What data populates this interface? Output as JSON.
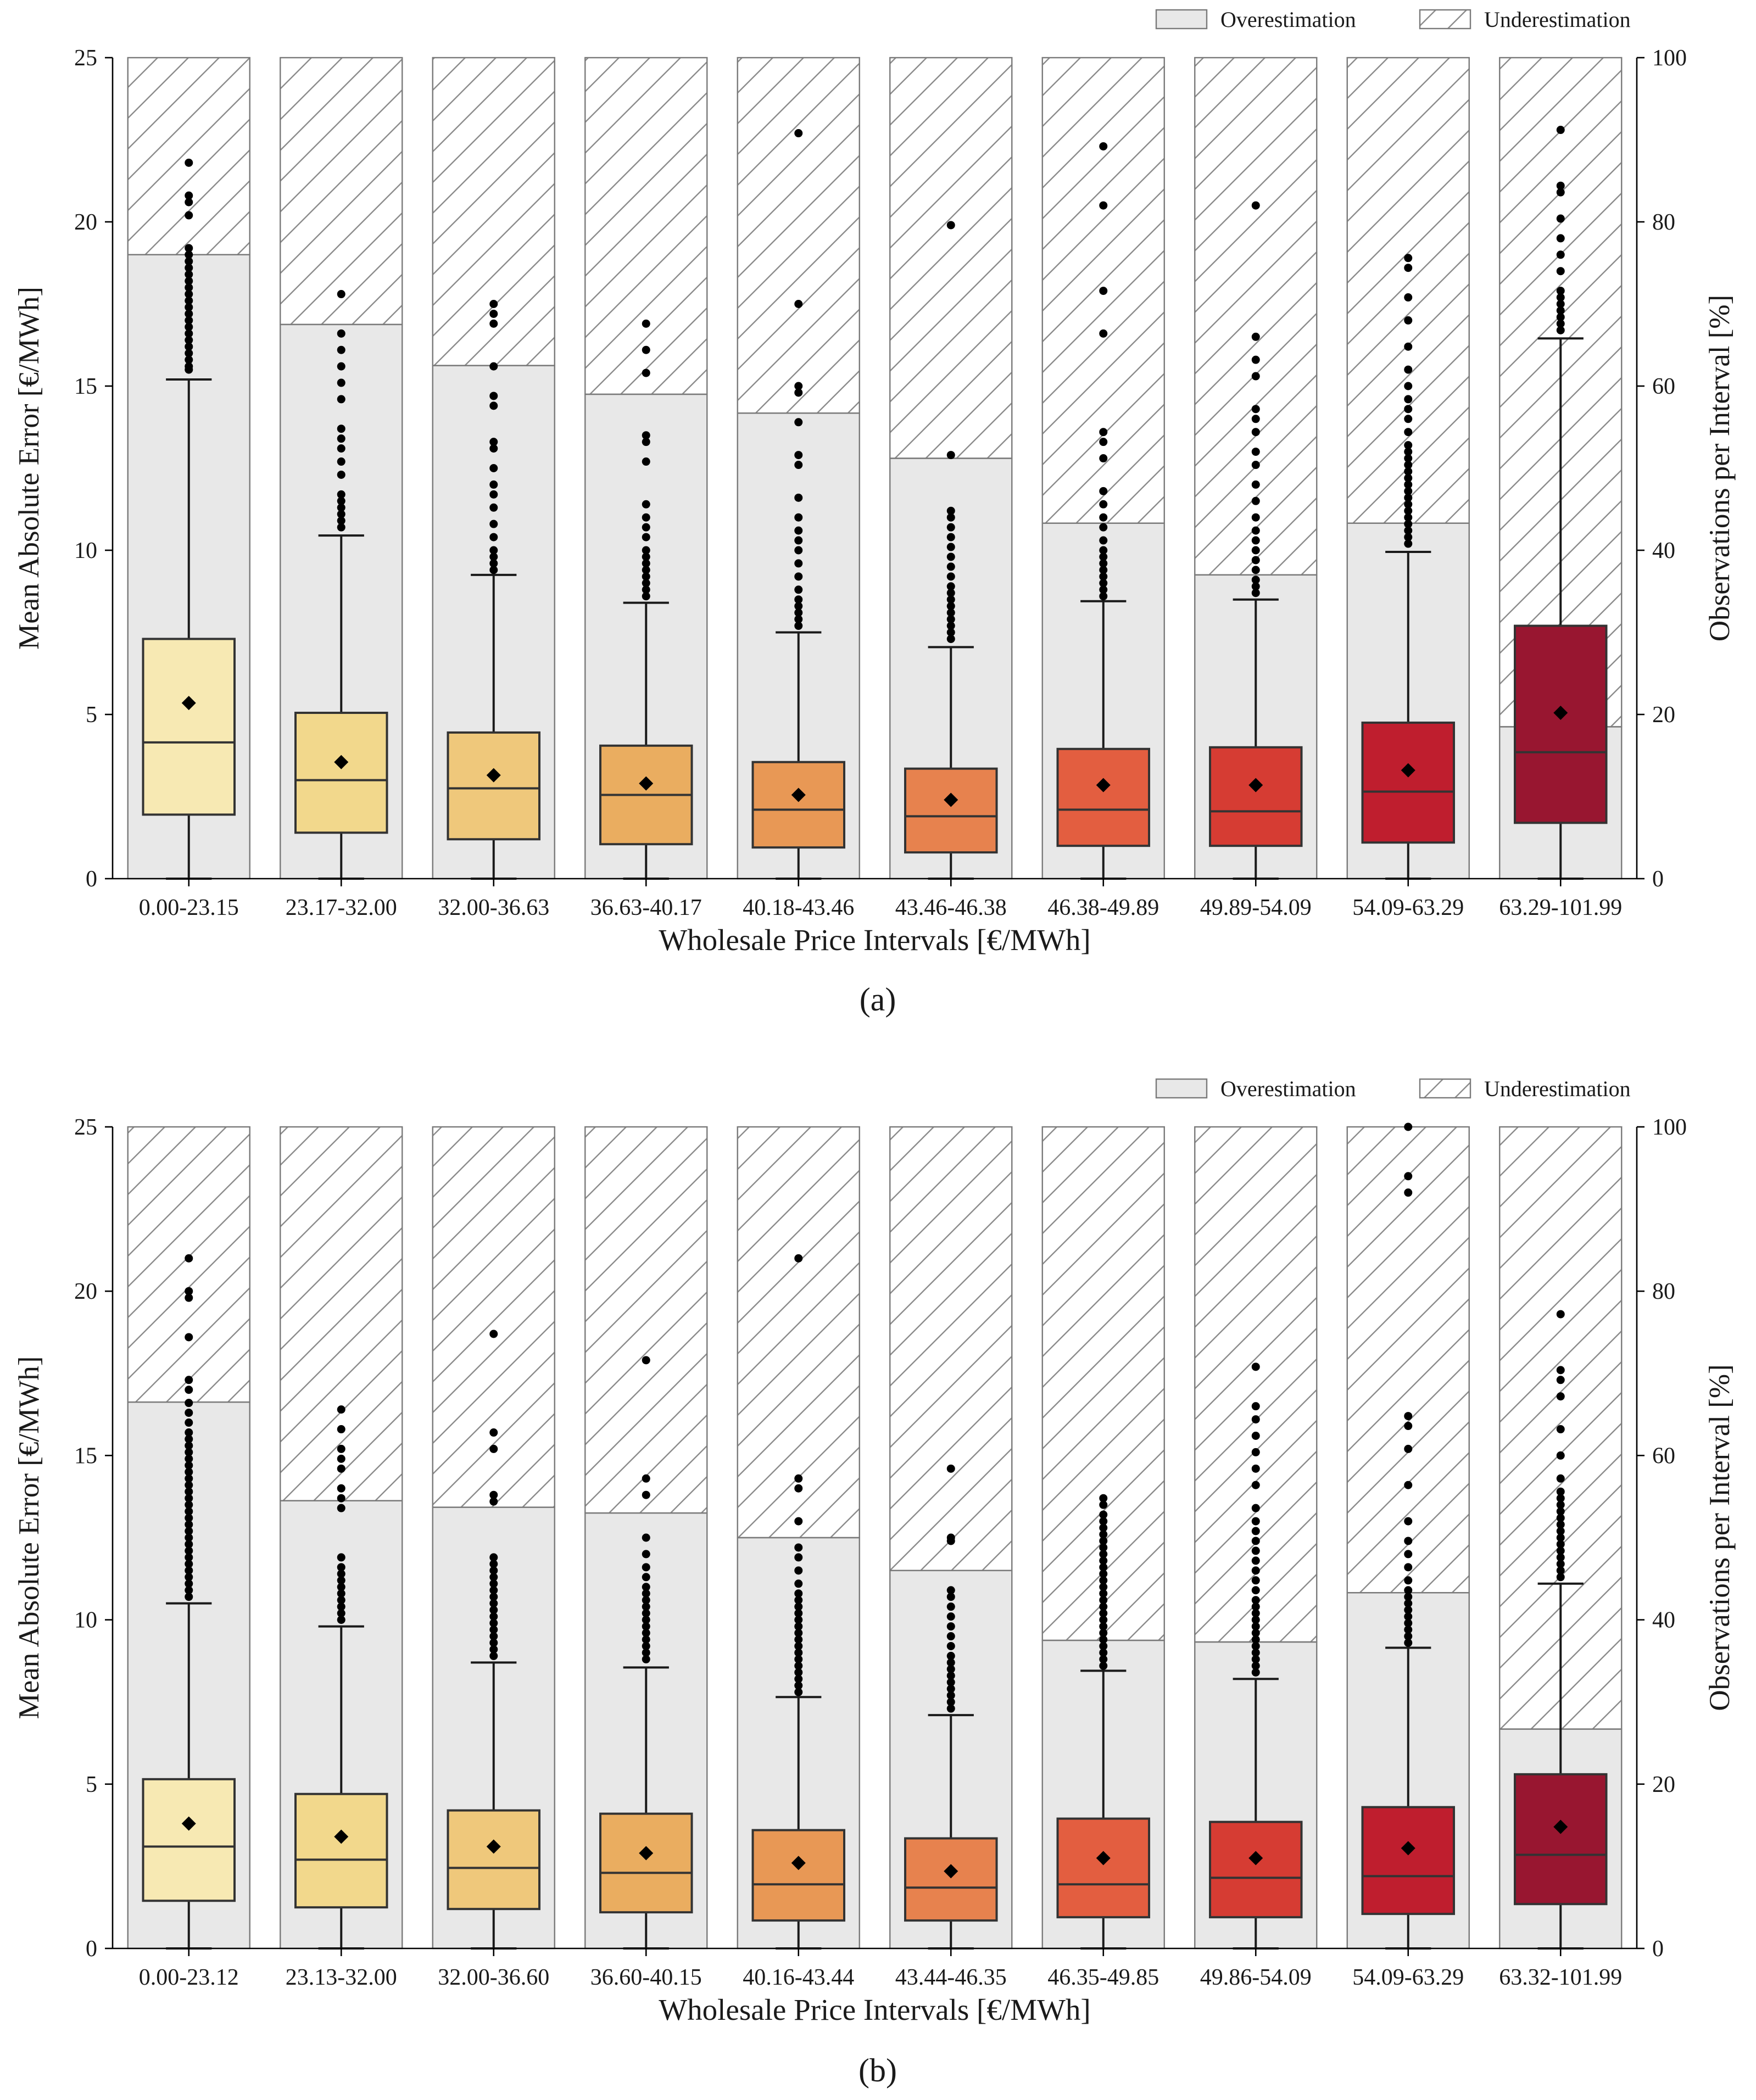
{
  "colors": {
    "over_fill": "#e8e8e8",
    "bar_edge": "#7a7a7a",
    "hatch": "#8c8c8c",
    "box_fills": [
      "#f7e9b3",
      "#f2d88c",
      "#efc87b",
      "#eaad60",
      "#e89855",
      "#e7824e",
      "#e35e40",
      "#d63c33",
      "#bf1e2e",
      "#981630"
    ],
    "median": "#333333",
    "whisker": "#1a1a1a",
    "point": "#000000"
  },
  "chart_data": [
    {
      "type": "box+stacked-bar",
      "caption": "(a)",
      "xlabel": "Wholesale Price Intervals [€/MWh]",
      "ylabel_left": "Mean Absolute Error [€/MWh]",
      "ylabel_right": "Observations per Interval [%]",
      "ylim_left": [
        0,
        25
      ],
      "ylim_right": [
        0,
        100
      ],
      "yticks_left": [
        "0",
        "5",
        "10",
        "15",
        "20",
        "25"
      ],
      "yticks_right": [
        "0",
        "20",
        "40",
        "60",
        "80",
        "100"
      ],
      "legend": {
        "position": "top-right",
        "entries": [
          "Overestimation",
          "Underestimation"
        ]
      },
      "categories": [
        "0.00-23.15",
        "23.17-32.00",
        "32.00-36.63",
        "36.63-40.17",
        "40.18-43.46",
        "43.46-46.38",
        "46.38-49.89",
        "49.89-54.09",
        "54.09-63.29",
        "63.29-101.99"
      ],
      "overestimation_pct": [
        76,
        67.5,
        62.5,
        59,
        56.7,
        51.2,
        43.3,
        37,
        43.3,
        18.5
      ],
      "underestimation_pct": [
        24,
        32.5,
        37.5,
        41,
        43.3,
        48.8,
        56.7,
        63,
        56.7,
        81.5
      ],
      "boxes": [
        {
          "q1": 1.95,
          "median": 4.15,
          "q3": 7.3,
          "mean": 5.35,
          "whisker_low": 0,
          "whisker_high": 15.2,
          "outliers": [
            15.5,
            15.6,
            15.8,
            16.0,
            16.2,
            16.4,
            16.6,
            16.8,
            17.0,
            17.2,
            17.4,
            17.6,
            17.8,
            18.0,
            18.2,
            18.4,
            18.6,
            18.8,
            19.0,
            19.2,
            20.2,
            20.6,
            20.8,
            21.8
          ]
        },
        {
          "q1": 1.4,
          "median": 3.0,
          "q3": 5.05,
          "mean": 3.55,
          "whisker_low": 0,
          "whisker_high": 10.45,
          "outliers": [
            10.7,
            10.9,
            11.1,
            11.3,
            11.5,
            11.7,
            12.3,
            12.7,
            13.1,
            13.4,
            13.7,
            14.6,
            15.1,
            15.6,
            16.1,
            16.6,
            17.8
          ]
        },
        {
          "q1": 1.2,
          "median": 2.75,
          "q3": 4.45,
          "mean": 3.15,
          "whisker_low": 0,
          "whisker_high": 9.25,
          "outliers": [
            9.4,
            9.6,
            9.8,
            10.0,
            10.4,
            10.8,
            11.3,
            11.7,
            12.0,
            12.5,
            13.1,
            13.3,
            14.4,
            14.7,
            15.6,
            16.9,
            17.2,
            17.5
          ]
        },
        {
          "q1": 1.05,
          "median": 2.55,
          "q3": 4.05,
          "mean": 2.9,
          "whisker_low": 0,
          "whisker_high": 8.4,
          "outliers": [
            8.6,
            8.8,
            9.0,
            9.2,
            9.4,
            9.6,
            9.8,
            10.0,
            10.4,
            10.7,
            11.0,
            11.4,
            12.7,
            13.3,
            13.5,
            15.4,
            16.1,
            16.9
          ]
        },
        {
          "q1": 0.95,
          "median": 2.1,
          "q3": 3.55,
          "mean": 2.55,
          "whisker_low": 0,
          "whisker_high": 7.5,
          "outliers": [
            7.7,
            7.9,
            8.1,
            8.3,
            8.5,
            8.8,
            9.2,
            9.6,
            10.0,
            10.3,
            10.6,
            11.0,
            11.6,
            12.6,
            12.9,
            13.9,
            14.8,
            15.0,
            17.5,
            22.7
          ]
        },
        {
          "q1": 0.8,
          "median": 1.9,
          "q3": 3.35,
          "mean": 2.4,
          "whisker_low": 0,
          "whisker_high": 7.05,
          "outliers": [
            7.3,
            7.5,
            7.7,
            7.9,
            8.1,
            8.3,
            8.5,
            8.7,
            8.9,
            9.2,
            9.5,
            9.8,
            10.1,
            10.4,
            10.7,
            11.0,
            11.2,
            12.9,
            19.9
          ]
        },
        {
          "q1": 1.0,
          "median": 2.1,
          "q3": 3.95,
          "mean": 2.85,
          "whisker_low": 0,
          "whisker_high": 8.45,
          "outliers": [
            8.6,
            8.8,
            9.0,
            9.2,
            9.4,
            9.6,
            9.8,
            10.0,
            10.3,
            10.7,
            11.0,
            11.4,
            11.8,
            12.8,
            13.3,
            13.6,
            16.6,
            17.9,
            20.5,
            22.3
          ]
        },
        {
          "q1": 1.0,
          "median": 2.05,
          "q3": 4.0,
          "mean": 2.85,
          "whisker_low": 0,
          "whisker_high": 8.5,
          "outliers": [
            8.7,
            8.9,
            9.1,
            9.4,
            9.7,
            10.0,
            10.3,
            10.6,
            11.0,
            11.5,
            12.0,
            12.6,
            13.0,
            13.6,
            14.0,
            14.3,
            15.3,
            15.8,
            16.5,
            20.5
          ]
        },
        {
          "q1": 1.1,
          "median": 2.65,
          "q3": 4.75,
          "mean": 3.3,
          "whisker_low": 0,
          "whisker_high": 9.95,
          "outliers": [
            10.2,
            10.4,
            10.6,
            10.8,
            11.0,
            11.2,
            11.4,
            11.6,
            11.8,
            12.0,
            12.2,
            12.4,
            12.6,
            12.8,
            13.0,
            13.2,
            13.6,
            14.0,
            14.3,
            14.6,
            15.0,
            15.5,
            16.2,
            17.0,
            17.7,
            18.6,
            18.9
          ]
        },
        {
          "q1": 1.7,
          "median": 3.85,
          "q3": 7.7,
          "mean": 5.05,
          "whisker_low": 0,
          "whisker_high": 16.45,
          "outliers": [
            16.7,
            16.9,
            17.1,
            17.3,
            17.5,
            17.7,
            17.9,
            18.5,
            19.0,
            19.5,
            20.1,
            20.9,
            21.1,
            22.8
          ]
        }
      ]
    },
    {
      "type": "box+stacked-bar",
      "caption": "(b)",
      "xlabel": "Wholesale Price Intervals [€/MWh]",
      "ylabel_left": "Mean Absolute Error [€/MWh]",
      "ylabel_right": "Observations per Interval [%]",
      "ylim_left": [
        0,
        25
      ],
      "ylim_right": [
        0,
        100
      ],
      "yticks_left": [
        "0",
        "5",
        "10",
        "15",
        "20",
        "25"
      ],
      "yticks_right": [
        "0",
        "20",
        "40",
        "60",
        "80",
        "100"
      ],
      "legend": {
        "position": "top-right",
        "entries": [
          "Overestimation",
          "Underestimation"
        ]
      },
      "categories": [
        "0.00-23.12",
        "23.13-32.00",
        "32.00-36.60",
        "36.60-40.15",
        "40.16-43.44",
        "43.44-46.35",
        "46.35-49.85",
        "49.86-54.09",
        "54.09-63.29",
        "63.32-101.99"
      ],
      "overestimation_pct": [
        66.5,
        54.5,
        53.7,
        53,
        50,
        46,
        37.5,
        37.3,
        43.3,
        26.7
      ],
      "underestimation_pct": [
        33.5,
        45.5,
        46.3,
        47,
        50,
        54,
        62.5,
        62.7,
        56.7,
        73.3
      ],
      "boxes": [
        {
          "q1": 1.45,
          "median": 3.1,
          "q3": 5.15,
          "mean": 3.8,
          "whisker_low": 0,
          "whisker_high": 10.5,
          "outliers": [
            10.7,
            10.9,
            11.1,
            11.3,
            11.5,
            11.7,
            11.9,
            12.1,
            12.3,
            12.5,
            12.7,
            12.9,
            13.1,
            13.3,
            13.5,
            13.7,
            13.9,
            14.1,
            14.3,
            14.5,
            14.7,
            14.9,
            15.1,
            15.3,
            15.5,
            15.7,
            16.0,
            16.3,
            16.6,
            17.0,
            17.3,
            18.6,
            19.8,
            20.0,
            21.0
          ]
        },
        {
          "q1": 1.25,
          "median": 2.7,
          "q3": 4.7,
          "mean": 3.4,
          "whisker_low": 0,
          "whisker_high": 9.8,
          "outliers": [
            10.0,
            10.2,
            10.4,
            10.6,
            10.8,
            11.0,
            11.2,
            11.4,
            11.6,
            11.9,
            13.4,
            13.7,
            14.0,
            14.6,
            14.9,
            15.2,
            15.8,
            16.4
          ]
        },
        {
          "q1": 1.2,
          "median": 2.45,
          "q3": 4.2,
          "mean": 3.1,
          "whisker_low": 0,
          "whisker_high": 8.7,
          "outliers": [
            8.9,
            9.1,
            9.3,
            9.5,
            9.7,
            9.9,
            10.1,
            10.3,
            10.5,
            10.7,
            10.9,
            11.1,
            11.3,
            11.5,
            11.7,
            11.9,
            13.6,
            13.8,
            15.2,
            15.7,
            18.7
          ]
        },
        {
          "q1": 1.1,
          "median": 2.3,
          "q3": 4.1,
          "mean": 2.9,
          "whisker_low": 0,
          "whisker_high": 8.55,
          "outliers": [
            8.8,
            9.0,
            9.2,
            9.4,
            9.6,
            9.8,
            10.0,
            10.2,
            10.4,
            10.6,
            10.8,
            11.0,
            11.3,
            11.6,
            12.0,
            12.5,
            13.8,
            14.3,
            17.9
          ]
        },
        {
          "q1": 0.85,
          "median": 1.95,
          "q3": 3.6,
          "mean": 2.6,
          "whisker_low": 0,
          "whisker_high": 7.65,
          "outliers": [
            7.8,
            8.0,
            8.2,
            8.4,
            8.6,
            8.8,
            9.0,
            9.2,
            9.4,
            9.6,
            9.8,
            10.0,
            10.2,
            10.4,
            10.6,
            10.8,
            11.1,
            11.5,
            11.9,
            12.2,
            13.0,
            14.0,
            14.3,
            21.0
          ]
        },
        {
          "q1": 0.85,
          "median": 1.85,
          "q3": 3.35,
          "mean": 2.35,
          "whisker_low": 0,
          "whisker_high": 7.1,
          "outliers": [
            7.3,
            7.5,
            7.7,
            7.9,
            8.1,
            8.3,
            8.5,
            8.7,
            8.9,
            9.2,
            9.5,
            9.8,
            10.1,
            10.4,
            10.7,
            10.9,
            12.4,
            12.5,
            14.6
          ]
        },
        {
          "q1": 0.95,
          "median": 1.95,
          "q3": 3.95,
          "mean": 2.75,
          "whisker_low": 0,
          "whisker_high": 8.45,
          "outliers": [
            8.6,
            8.8,
            9.0,
            9.2,
            9.4,
            9.6,
            9.8,
            10.0,
            10.2,
            10.4,
            10.6,
            10.8,
            11.0,
            11.2,
            11.4,
            11.6,
            11.8,
            12.0,
            12.2,
            12.4,
            12.6,
            12.8,
            13.0,
            13.2,
            13.5,
            13.7
          ]
        },
        {
          "q1": 0.95,
          "median": 2.15,
          "q3": 3.85,
          "mean": 2.75,
          "whisker_low": 0,
          "whisker_high": 8.2,
          "outliers": [
            8.4,
            8.6,
            8.8,
            9.0,
            9.2,
            9.4,
            9.6,
            9.8,
            10.0,
            10.2,
            10.4,
            10.6,
            10.9,
            11.2,
            11.5,
            11.8,
            12.1,
            12.4,
            12.7,
            13.0,
            13.4,
            14.1,
            14.6,
            15.1,
            15.6,
            16.1,
            16.5,
            17.7
          ]
        },
        {
          "q1": 1.05,
          "median": 2.2,
          "q3": 4.3,
          "mean": 3.05,
          "whisker_low": 0,
          "whisker_high": 9.15,
          "outliers": [
            9.3,
            9.5,
            9.7,
            9.9,
            10.1,
            10.3,
            10.5,
            10.7,
            10.9,
            11.2,
            11.6,
            12.0,
            12.4,
            13.0,
            14.1,
            15.2,
            15.9,
            16.2,
            23.0,
            23.5,
            25.0
          ]
        },
        {
          "q1": 1.35,
          "median": 2.85,
          "q3": 5.3,
          "mean": 3.7,
          "whisker_low": 0,
          "whisker_high": 11.1,
          "outliers": [
            11.3,
            11.5,
            11.7,
            11.9,
            12.1,
            12.3,
            12.5,
            12.7,
            12.9,
            13.1,
            13.3,
            13.5,
            13.7,
            13.9,
            14.3,
            15.0,
            15.8,
            16.8,
            17.3,
            17.6,
            19.3
          ]
        }
      ]
    }
  ]
}
